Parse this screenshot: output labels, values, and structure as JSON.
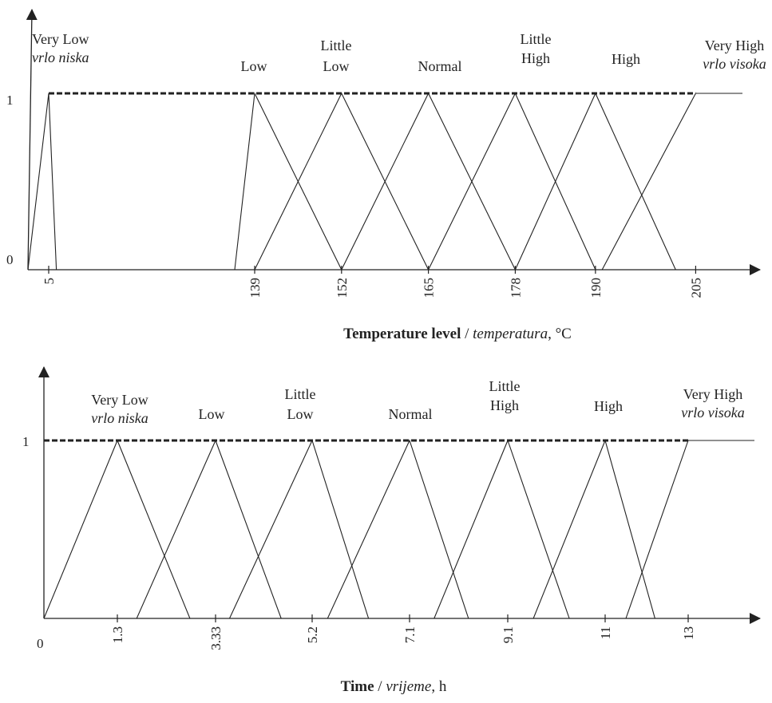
{
  "chart_data": [
    {
      "type": "line",
      "subtype": "fuzzy-membership-triangular",
      "title": "",
      "xlabel": {
        "bold": "Temperature level",
        "sep": " / ",
        "italic": "temperatura",
        "unit": ", °C"
      },
      "ylabel": "",
      "yticks": [
        "0",
        "1"
      ],
      "xtick_labels": [
        "5",
        "139",
        "152",
        "165",
        "178",
        "190",
        "205"
      ],
      "xtick_values": [
        5,
        139,
        152,
        165,
        178,
        190,
        205
      ],
      "xlim": [
        0,
        212
      ],
      "ylim": [
        0,
        1
      ],
      "dashed_reference_line": {
        "y": 1,
        "from": 5,
        "to": 205
      },
      "series": [
        {
          "name": "Very Low",
          "name_local": "vrlo niska",
          "points": [
            [
              0,
              0
            ],
            [
              5,
              1
            ],
            [
              10,
              0
            ]
          ]
        },
        {
          "name": "Low",
          "points": [
            [
              126,
              0
            ],
            [
              139,
              1
            ],
            [
              152,
              0
            ]
          ]
        },
        {
          "name": "Little Low",
          "points": [
            [
              139,
              0
            ],
            [
              152,
              1
            ],
            [
              165,
              0
            ]
          ]
        },
        {
          "name": "Normal",
          "points": [
            [
              152,
              0
            ],
            [
              165,
              1
            ],
            [
              178,
              0
            ]
          ]
        },
        {
          "name": "Little High",
          "points": [
            [
              165,
              0
            ],
            [
              178,
              1
            ],
            [
              190,
              0
            ]
          ]
        },
        {
          "name": "High",
          "points": [
            [
              178,
              0
            ],
            [
              190,
              1
            ],
            [
              202,
              0
            ]
          ]
        },
        {
          "name": "Very High",
          "name_local": "vrlo visoka",
          "points": [
            [
              191,
              0
            ],
            [
              205,
              1
            ],
            [
              212,
              1
            ]
          ]
        }
      ]
    },
    {
      "type": "line",
      "subtype": "fuzzy-membership-triangular",
      "title": "",
      "xlabel": {
        "bold": "Time",
        "sep": " / ",
        "italic": "vrijeme",
        "unit": ", h"
      },
      "ylabel": "",
      "yticks": [
        "1"
      ],
      "origin_label": "0",
      "xtick_labels": [
        "1.3",
        "3.33",
        "5.2",
        "7.1",
        "9.1",
        "11",
        "13"
      ],
      "xtick_values": [
        1.3,
        3.33,
        5.2,
        7.1,
        9.1,
        11,
        13
      ],
      "xlim": [
        0,
        14.3
      ],
      "ylim": [
        0,
        1
      ],
      "dashed_reference_line": {
        "y": 1,
        "from": 0,
        "to": 13
      },
      "series": [
        {
          "name": "Very Low",
          "name_local": "vrlo niska",
          "points": [
            [
              0,
              0
            ],
            [
              1.3,
              1
            ],
            [
              2.8,
              0
            ]
          ]
        },
        {
          "name": "Low",
          "points": [
            [
              1.7,
              0
            ],
            [
              3.33,
              1
            ],
            [
              4.6,
              0
            ]
          ]
        },
        {
          "name": "Little Low",
          "points": [
            [
              3.6,
              0
            ],
            [
              5.2,
              1
            ],
            [
              6.3,
              0
            ]
          ]
        },
        {
          "name": "Normal",
          "points": [
            [
              5.5,
              0
            ],
            [
              7.1,
              1
            ],
            [
              8.3,
              0
            ]
          ]
        },
        {
          "name": "Little High",
          "points": [
            [
              7.6,
              0
            ],
            [
              9.1,
              1
            ],
            [
              10.3,
              0
            ]
          ]
        },
        {
          "name": "High",
          "points": [
            [
              9.6,
              0
            ],
            [
              11,
              1
            ],
            [
              12.2,
              0
            ]
          ]
        },
        {
          "name": "Very High",
          "name_local": "vrlo visoka",
          "points": [
            [
              11.5,
              0
            ],
            [
              13,
              1
            ],
            [
              14.3,
              1
            ]
          ]
        }
      ]
    }
  ]
}
